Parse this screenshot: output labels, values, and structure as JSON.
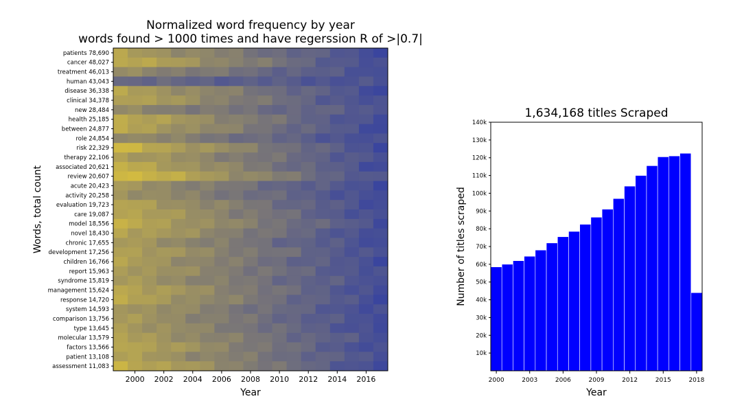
{
  "chart_data": [
    {
      "type": "heatmap",
      "title": "Normalized word frequency by year",
      "subtitle": "words found > 1000 times and have regerssion R of >|0.7|",
      "xlabel": "Year",
      "ylabel": "Words, total count",
      "x_ticks": [
        "2000",
        "2002",
        "2004",
        "2006",
        "2008",
        "2010",
        "2012",
        "2014",
        "2016"
      ],
      "years": [
        1999,
        2000,
        2001,
        2002,
        2003,
        2004,
        2005,
        2006,
        2007,
        2008,
        2009,
        2010,
        2011,
        2012,
        2013,
        2014,
        2015,
        2016,
        2017
      ],
      "colormap": {
        "low": "#3a459e",
        "high": "#d8bf3d"
      },
      "rows": [
        {
          "label": "patients 78,690",
          "start": 0.74,
          "end": 0.05
        },
        {
          "label": "cancer 48,027",
          "start": 0.86,
          "end": 0.05
        },
        {
          "label": "treatment 46,013",
          "start": 0.58,
          "end": 0.08
        },
        {
          "label": "human 43,043",
          "start": 0.3,
          "end": 0.1
        },
        {
          "label": "disease 36,338",
          "start": 0.76,
          "end": 0.05
        },
        {
          "label": "clinical 34,378",
          "start": 0.8,
          "end": 0.05
        },
        {
          "label": "new 28,484",
          "start": 0.55,
          "end": 0.15
        },
        {
          "label": "health 25,185",
          "start": 0.84,
          "end": 0.05
        },
        {
          "label": "between 24,877",
          "start": 0.8,
          "end": 0.05
        },
        {
          "label": "role 24,854",
          "start": 0.6,
          "end": 0.05
        },
        {
          "label": "risk 22,329",
          "start": 0.92,
          "end": 0.05
        },
        {
          "label": "therapy 22,106",
          "start": 0.74,
          "end": 0.1
        },
        {
          "label": "associated 20,621",
          "start": 0.86,
          "end": 0.05
        },
        {
          "label": "review 20,607",
          "start": 1.0,
          "end": 0.1
        },
        {
          "label": "acute 20,423",
          "start": 0.66,
          "end": 0.05
        },
        {
          "label": "activity 20,258",
          "start": 0.65,
          "end": 0.05
        },
        {
          "label": "evaluation 19,723",
          "start": 0.78,
          "end": 0.05
        },
        {
          "label": "care 19,087",
          "start": 0.82,
          "end": 0.05
        },
        {
          "label": "model 18,556",
          "start": 0.84,
          "end": 0.1
        },
        {
          "label": "novel 18,430",
          "start": 0.8,
          "end": 0.05
        },
        {
          "label": "chronic 17,655",
          "start": 0.7,
          "end": 0.05
        },
        {
          "label": "development 17,256",
          "start": 0.78,
          "end": 0.08
        },
        {
          "label": "children 16,766",
          "start": 0.74,
          "end": 0.05
        },
        {
          "label": "report 15,963",
          "start": 0.74,
          "end": 0.08
        },
        {
          "label": "syndrome 15,819",
          "start": 0.7,
          "end": 0.08
        },
        {
          "label": "management 15,624",
          "start": 0.82,
          "end": 0.05
        },
        {
          "label": "response 14,720",
          "start": 0.8,
          "end": 0.05
        },
        {
          "label": "system 14,593",
          "start": 0.7,
          "end": 0.05
        },
        {
          "label": "comparison 13,756",
          "start": 0.7,
          "end": 0.05
        },
        {
          "label": "type 13,645",
          "start": 0.72,
          "end": 0.05
        },
        {
          "label": "molecular 13,579",
          "start": 0.74,
          "end": 0.1
        },
        {
          "label": "factors 13,566",
          "start": 0.84,
          "end": 0.05
        },
        {
          "label": "patient 13,108",
          "start": 0.74,
          "end": 0.1
        },
        {
          "label": "assessment 11,083",
          "start": 0.88,
          "end": 0.05
        }
      ]
    },
    {
      "type": "bar",
      "title": "1,634,168 titles Scraped",
      "xlabel": "Year",
      "ylabel": "Number of titles scraped",
      "categories": [
        2000,
        2001,
        2002,
        2003,
        2004,
        2005,
        2006,
        2007,
        2008,
        2009,
        2010,
        2011,
        2012,
        2013,
        2014,
        2015,
        2016,
        2017,
        2018
      ],
      "values": [
        58500,
        60000,
        62000,
        64500,
        68000,
        72000,
        75500,
        78500,
        82500,
        86500,
        91000,
        97000,
        104000,
        110000,
        115500,
        120500,
        121000,
        122500,
        44000
      ],
      "ylim": [
        0,
        140000
      ],
      "xlim": [
        1999.5,
        2018.5
      ],
      "y_ticks": [
        {
          "value": 10000,
          "label": "10k"
        },
        {
          "value": 20000,
          "label": "20k"
        },
        {
          "value": 30000,
          "label": "30k"
        },
        {
          "value": 40000,
          "label": "40k"
        },
        {
          "value": 50000,
          "label": "50k"
        },
        {
          "value": 60000,
          "label": "60k"
        },
        {
          "value": 70000,
          "label": "70k"
        },
        {
          "value": 80000,
          "label": "80k"
        },
        {
          "value": 90000,
          "label": "90k"
        },
        {
          "value": 100000,
          "label": "100k"
        },
        {
          "value": 110000,
          "label": "110k"
        },
        {
          "value": 120000,
          "label": "120k"
        },
        {
          "value": 130000,
          "label": "130k"
        },
        {
          "value": 140000,
          "label": "140k"
        }
      ],
      "x_ticks": [
        2000,
        2003,
        2006,
        2009,
        2012,
        2015,
        2018
      ],
      "bar_color": "#0000ff",
      "edge_color": "#ffffff"
    }
  ]
}
